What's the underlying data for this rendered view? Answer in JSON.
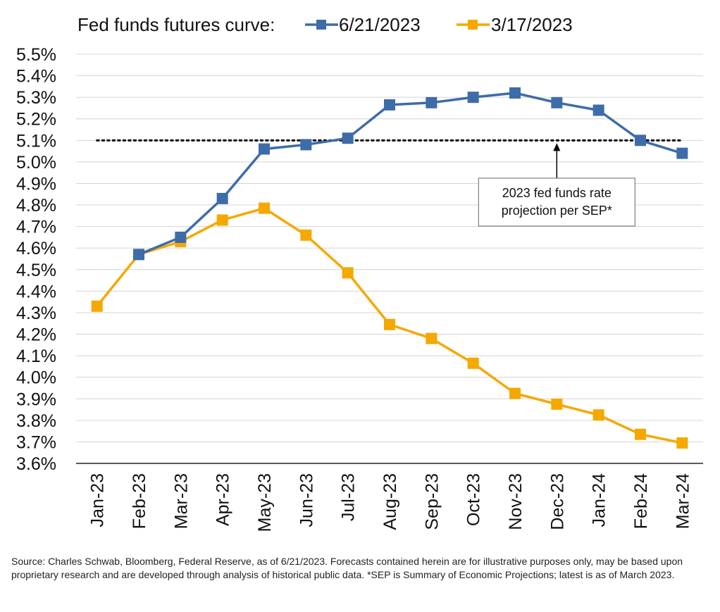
{
  "legend": {
    "prefix": "Fed funds futures curve:"
  },
  "chart_data": {
    "type": "line",
    "categories": [
      "Jan-23",
      "Feb-23",
      "Mar-23",
      "Apr-23",
      "May-23",
      "Jun-23",
      "Jul-23",
      "Aug-23",
      "Sep-23",
      "Oct-23",
      "Nov-23",
      "Dec-23",
      "Jan-24",
      "Feb-24",
      "Mar-24"
    ],
    "y_ticks": [
      "5.5%",
      "5.4%",
      "5.3%",
      "5.2%",
      "5.1%",
      "5.0%",
      "4.9%",
      "4.8%",
      "4.7%",
      "4.6%",
      "4.5%",
      "4.4%",
      "4.3%",
      "4.2%",
      "4.1%",
      "4.0%",
      "3.9%",
      "3.8%",
      "3.7%",
      "3.6%"
    ],
    "ylim": [
      3.6,
      5.5
    ],
    "grid": true,
    "legend_placement": "top",
    "series": [
      {
        "name": "6/21/2023",
        "color": "#3d6ca8",
        "values": [
          null,
          4.57,
          4.65,
          4.83,
          5.06,
          5.08,
          5.11,
          5.265,
          5.275,
          5.3,
          5.32,
          5.275,
          5.24,
          5.1,
          5.04
        ]
      },
      {
        "name": "3/17/2023",
        "color": "#f5a800",
        "values": [
          4.33,
          4.57,
          4.63,
          4.73,
          4.785,
          4.66,
          4.485,
          4.245,
          4.18,
          4.065,
          3.925,
          3.875,
          3.825,
          3.735,
          3.695
        ]
      }
    ],
    "reference_line": {
      "value": 5.1,
      "style": "dotted",
      "color": "#000000"
    },
    "annotation": {
      "text_line1": "2023 fed funds rate",
      "text_line2": "projection per SEP*",
      "category": "Dec-23"
    }
  },
  "source": "Source: Charles Schwab, Bloomberg, Federal Reserve, as of 6/21/2023. Forecasts contained herein are for illustrative purposes only, may be based upon proprietary research and are developed through analysis of historical public data. *SEP is Summary of Economic Projections; latest is as of March 2023."
}
